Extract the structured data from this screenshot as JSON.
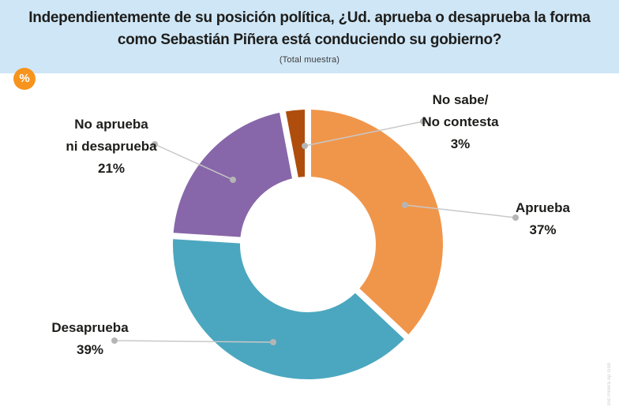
{
  "header": {
    "title_line1": "Independientemente de su posición política, ¿Ud. aprueba o desaprueba la forma",
    "title_line2": "como Sebastián Piñera está conduciendo su gobierno?",
    "subtitle": "(Total muestra)",
    "badge": "%"
  },
  "colors": {
    "header_bg": "#cfe6f6",
    "badge_bg": "#f7941d",
    "text": "#1d1d1b",
    "leader_line": "#c8c8c8",
    "leader_dot": "#b5b5b5"
  },
  "watermark": "Ind Piñera Ap Gob",
  "chart_data": {
    "type": "pie",
    "donut": true,
    "inner_radius_ratio": 0.5,
    "start_angle_deg": 0,
    "direction": "clockwise",
    "title": "Independientemente de su posición política, ¿Ud. aprueba o desaprueba la forma como Sebastián Piñera está conduciendo su gobierno?",
    "subtitle": "(Total muestra)",
    "legend": "none",
    "unit": "%",
    "segments": [
      {
        "label": "Aprueba",
        "label_lines": [
          "Aprueba"
        ],
        "value": 37,
        "pct_text": "37%",
        "color": "#f0964b"
      },
      {
        "label": "Desaprueba",
        "label_lines": [
          "Desaprueba"
        ],
        "value": 39,
        "pct_text": "39%",
        "color": "#4ba7bf"
      },
      {
        "label": "No aprueba ni desaprueba",
        "label_lines": [
          "No aprueba",
          "ni desaprueba"
        ],
        "value": 21,
        "pct_text": "21%",
        "color": "#8767a9"
      },
      {
        "label": "No sabe/ No contesta",
        "label_lines": [
          "No sabe/",
          "No contesta"
        ],
        "value": 3,
        "pct_text": "3%",
        "color": "#af4d0c"
      }
    ]
  }
}
